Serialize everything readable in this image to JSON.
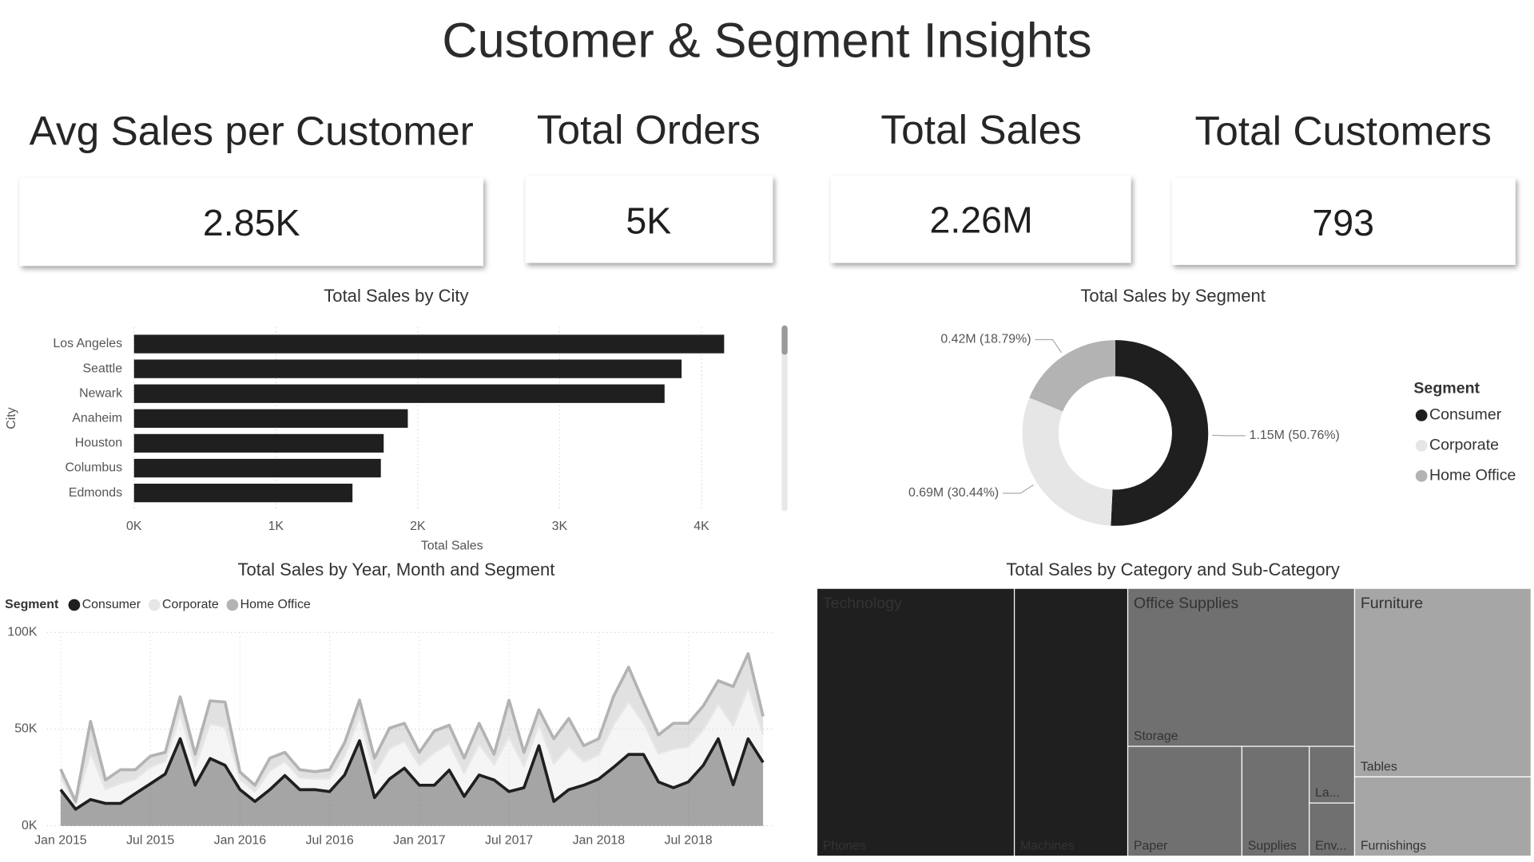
{
  "title": "Customer & Segment Insights",
  "kpis": [
    {
      "label": "Avg Sales per Customer",
      "value": "2.85K"
    },
    {
      "label": "Total Orders",
      "value": "5K"
    },
    {
      "label": "Total Sales",
      "value": "2.26M"
    },
    {
      "label": "Total Customers",
      "value": "793"
    }
  ],
  "chart_data": [
    {
      "type": "bar",
      "orientation": "horizontal",
      "title": "Total Sales by City",
      "x_label": "Total Sales",
      "y_label": "City",
      "categories": [
        "Los Angeles",
        "Seattle",
        "Newark",
        "Anaheim",
        "Houston",
        "Columbus",
        "Edmonds"
      ],
      "values": [
        4.16,
        3.86,
        3.74,
        1.93,
        1.76,
        1.74,
        1.54
      ],
      "color": "#1f1f1f",
      "xlim": [
        0,
        4.6
      ],
      "xticks": [
        {
          "value": 0,
          "label": "0K"
        },
        {
          "value": 1,
          "label": "1K"
        },
        {
          "value": 2,
          "label": "2K"
        },
        {
          "value": 3,
          "label": "3K"
        },
        {
          "value": 4,
          "label": "4K"
        }
      ],
      "grid": true
    },
    {
      "type": "donut",
      "title": "Total Sales by Segment",
      "legend_title": "Segment",
      "legend": "right",
      "categories": [
        "Consumer",
        "Corporate",
        "Home Office"
      ],
      "values": [
        50.76,
        30.44,
        18.79
      ],
      "value_labels": [
        "1.15M (50.76%)",
        "0.69M (30.44%)",
        "0.42M (18.79%)"
      ],
      "colors": [
        "#1f1f1f",
        "#e6e6e6",
        "#b3b3b3"
      ]
    },
    {
      "type": "area",
      "stacked": true,
      "title": "Total Sales by Year, Month and Segment",
      "legend_title": "Segment",
      "legend": "top-left",
      "categories": [
        "Jan 2015",
        null,
        null,
        null,
        null,
        null,
        "Jul 2015",
        null,
        null,
        null,
        null,
        null,
        "Jan 2016",
        null,
        null,
        null,
        null,
        null,
        "Jul 2016",
        null,
        null,
        null,
        null,
        null,
        "Jan 2017",
        null,
        null,
        null,
        null,
        null,
        "Jul 2017",
        null,
        null,
        null,
        null,
        null,
        "Jan 2018",
        null,
        null,
        null,
        null,
        null,
        "Jul 2018",
        null,
        null,
        null,
        null,
        null
      ],
      "series": [
        {
          "name": "Consumer",
          "color": "#1f1f1f",
          "values": [
            18.7,
            8.6,
            13.6,
            11.6,
            11.6,
            16.7,
            21.7,
            26.8,
            45,
            21,
            34.8,
            31.3,
            18.7,
            12.6,
            18.7,
            26,
            18.7,
            18.7,
            17.7,
            26.3,
            44,
            14.6,
            24.2,
            29.8,
            21,
            21,
            28.8,
            15.2,
            26.3,
            23.7,
            17.7,
            19.7,
            41.4,
            12.6,
            18.7,
            21,
            24.2,
            30.3,
            36.9,
            36.9,
            22.7,
            19.7,
            22.7,
            31.3,
            45,
            21.2,
            45,
            32.8
          ]
        },
        {
          "name": "Corporate",
          "color": "#e6e6e6",
          "values": [
            6.4,
            2.4,
            24.2,
            7.3,
            10.4,
            7.4,
            8.6,
            6.7,
            13,
            9.6,
            17.9,
            19.6,
            5.5,
            5,
            9.8,
            7.2,
            6.2,
            5.6,
            6.8,
            10,
            12.6,
            12.2,
            15.8,
            13.9,
            10.2,
            16.8,
            13.9,
            11.9,
            16,
            8,
            28.4,
            11,
            11.2,
            19.4,
            22.1,
            12.2,
            12.5,
            22,
            27.1,
            16.3,
            14.6,
            20,
            18.2,
            18.4,
            18,
            30.5,
            26.4,
            14.3
          ]
        },
        {
          "name": "Home Office",
          "color": "#b3b3b3",
          "values": [
            4.2,
            1.6,
            16.2,
            4.8,
            7,
            4.9,
            5.7,
            4.5,
            8.7,
            6.4,
            11.9,
            13.1,
            3.6,
            3.4,
            6.5,
            4.8,
            4.1,
            3.7,
            4.5,
            6.7,
            8.4,
            8.2,
            10.5,
            9.3,
            6.8,
            11.2,
            9.3,
            7.9,
            10.7,
            5.3,
            18.9,
            7.3,
            7.4,
            13,
            14.7,
            8.2,
            8.3,
            14.7,
            18,
            10.8,
            9.7,
            13.3,
            12.1,
            12.3,
            12,
            20.3,
            17.6,
            9.5
          ]
        }
      ],
      "ylim": [
        0,
        100
      ],
      "yticks": [
        {
          "value": 0,
          "label": "0K"
        },
        {
          "value": 50,
          "label": "50K"
        },
        {
          "value": 100,
          "label": "100K"
        }
      ],
      "grid": true
    },
    {
      "type": "treemap",
      "title": "Total Sales by Category and Sub-Category",
      "series": [
        {
          "name": "Technology",
          "color": "#1f1f1f",
          "categories": [
            "Phones",
            "Machines"
          ],
          "values": [
            329,
            189
          ]
        },
        {
          "name": "Office Supplies",
          "color": "#707070",
          "categories": [
            "Storage",
            "Paper",
            "Supplies",
            "La...",
            "Env..."
          ],
          "values": [
            223,
            78,
            46,
            16,
            15
          ]
        },
        {
          "name": "Furniture",
          "color": "#a6a6a6",
          "categories": [
            "Tables",
            "Furnishings"
          ],
          "values": [
            207,
            87
          ]
        }
      ]
    }
  ]
}
